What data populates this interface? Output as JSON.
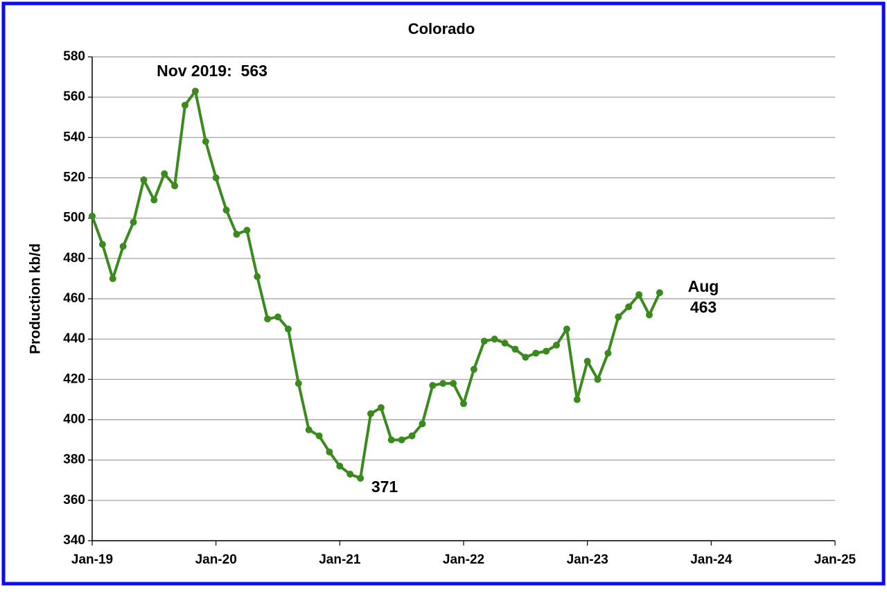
{
  "chart_data": {
    "type": "line",
    "title": "Colorado",
    "y_label": "Production kb/d",
    "x": [
      "2019-01",
      "2019-02",
      "2019-03",
      "2019-04",
      "2019-05",
      "2019-06",
      "2019-07",
      "2019-08",
      "2019-09",
      "2019-10",
      "2019-11",
      "2019-12",
      "2020-01",
      "2020-02",
      "2020-03",
      "2020-04",
      "2020-05",
      "2020-06",
      "2020-07",
      "2020-08",
      "2020-09",
      "2020-10",
      "2020-11",
      "2020-12",
      "2021-01",
      "2021-02",
      "2021-03",
      "2021-04",
      "2021-05",
      "2021-06",
      "2021-07",
      "2021-08",
      "2021-09",
      "2021-10",
      "2021-11",
      "2021-12",
      "2022-01",
      "2022-02",
      "2022-03",
      "2022-04",
      "2022-05",
      "2022-06",
      "2022-07",
      "2022-08",
      "2022-09",
      "2022-10",
      "2022-11",
      "2022-12",
      "2023-01",
      "2023-02",
      "2023-03",
      "2023-04",
      "2023-05",
      "2023-06",
      "2023-07",
      "2023-08"
    ],
    "values": [
      501,
      487,
      470,
      486,
      498,
      519,
      509,
      522,
      516,
      556,
      563,
      538,
      520,
      504,
      492,
      494,
      471,
      450,
      451,
      445,
      418,
      395,
      392,
      384,
      377,
      373,
      371,
      403,
      406,
      390,
      390,
      392,
      398,
      417,
      418,
      418,
      408,
      425,
      439,
      440,
      438,
      435,
      431,
      433,
      434,
      437,
      445,
      410,
      429,
      420,
      433,
      451,
      456,
      462,
      452,
      463
    ],
    "color": "#3a8a1e",
    "xlim": [
      "2019-01",
      "2025-01"
    ],
    "xticks": [
      {
        "value": "2019-01",
        "label": "Jan-19"
      },
      {
        "value": "2020-01",
        "label": "Jan-20"
      },
      {
        "value": "2021-01",
        "label": "Jan-21"
      },
      {
        "value": "2022-01",
        "label": "Jan-22"
      },
      {
        "value": "2023-01",
        "label": "Jan-23"
      },
      {
        "value": "2024-01",
        "label": "Jan-24"
      },
      {
        "value": "2025-01",
        "label": "Jan-25"
      }
    ],
    "ylim": [
      340,
      580
    ],
    "yticks": [
      340,
      360,
      380,
      400,
      420,
      440,
      460,
      480,
      500,
      520,
      540,
      560,
      580
    ],
    "grid": true,
    "annotations": [
      "Nov 2019:  563",
      "371",
      "Aug",
      "463"
    ]
  }
}
